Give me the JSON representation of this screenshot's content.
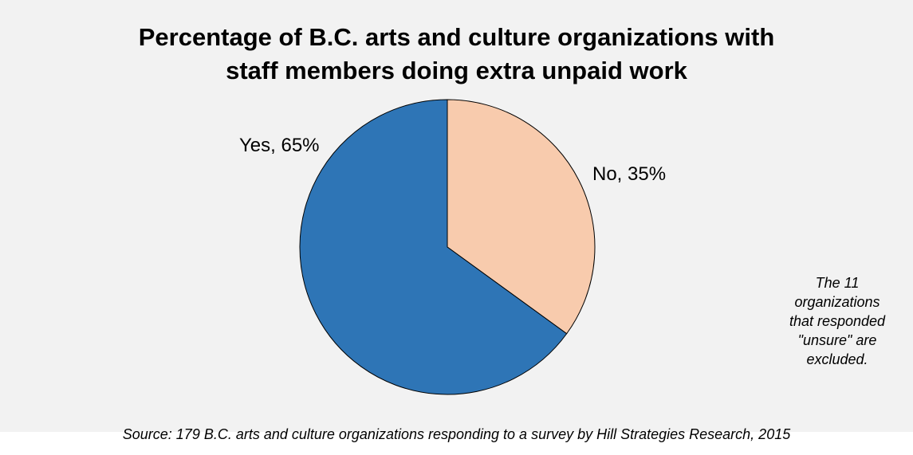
{
  "chart_data": {
    "type": "pie",
    "title": [
      "Percentage of B.C. arts and culture organizations with",
      "staff members doing extra unpaid work"
    ],
    "slices": [
      {
        "label": "Yes, 65%",
        "category": "Yes",
        "value": 65,
        "color": "#2e75b6"
      },
      {
        "label": "No, 35%",
        "category": "No",
        "value": 35,
        "color": "#f8cbad"
      }
    ],
    "note": [
      "The 11",
      "organizations",
      "that responded",
      "\"unsure\" are",
      "excluded."
    ],
    "source": "Source: 179 B.C. arts and culture organizations responding to a survey by Hill Strategies Research, 2015"
  }
}
